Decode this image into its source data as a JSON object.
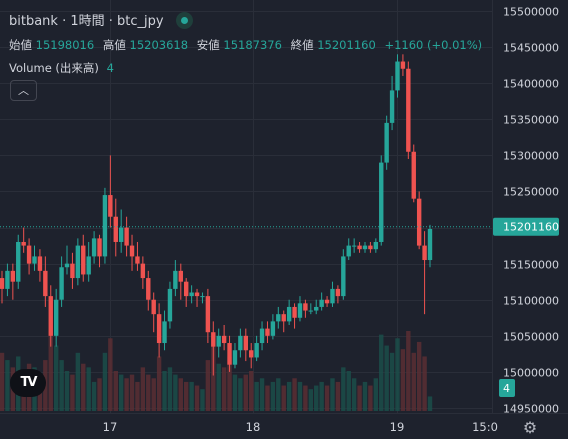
{
  "header": {
    "symbol": "bitbank · 1時間 · btc_jpy",
    "open_label": "始値",
    "open_value": "15198016",
    "high_label": "高値",
    "high_value": "15203618",
    "low_label": "安値",
    "low_value": "15187376",
    "close_label": "終値",
    "close_value": "15201160",
    "change_value": "+1160 (+0.01%)",
    "volume_label": "Volume (出来高)",
    "volume_value": "4"
  },
  "controls": {
    "collapse_icon": "chevron-up-icon",
    "settings_icon": "gear-icon",
    "logo_text": "TV"
  },
  "colors": {
    "up": "#26a69a",
    "down": "#ef5350",
    "background": "#1e222d",
    "grid": "#2a2e39",
    "price_line": "#26a69a"
  },
  "chart_data": {
    "type": "candlestick",
    "title": "bitbank · 1時間 · btc_jpy",
    "ylim": [
      14940000,
      15510000
    ],
    "y_ticks": [
      15500000,
      15450000,
      15400000,
      15350000,
      15300000,
      15250000,
      15200000,
      15150000,
      15100000,
      15050000,
      15000000,
      14950000
    ],
    "x_ticks": [
      "17",
      "18",
      "19",
      "15:0"
    ],
    "last_price_label": "15201160",
    "last_volume_label": "4",
    "grid": true,
    "candles": [
      [
        15130000,
        15115000,
        15140000,
        15095000
      ],
      [
        15115000,
        15140000,
        15150000,
        15105000
      ],
      [
        15140000,
        15125000,
        15150000,
        15100000
      ],
      [
        15125000,
        15180000,
        15190000,
        15115000
      ],
      [
        15180000,
        15175000,
        15200000,
        15165000
      ],
      [
        15175000,
        15150000,
        15185000,
        15135000
      ],
      [
        15150000,
        15160000,
        15175000,
        15140000
      ],
      [
        15160000,
        15140000,
        15170000,
        15125000
      ],
      [
        15140000,
        15105000,
        15160000,
        15090000
      ],
      [
        15105000,
        15050000,
        15120000,
        15035000
      ],
      [
        15050000,
        15100000,
        15115000,
        15035000
      ],
      [
        15100000,
        15145000,
        15160000,
        15090000
      ],
      [
        15145000,
        15150000,
        15175000,
        15135000
      ],
      [
        15150000,
        15130000,
        15165000,
        15115000
      ],
      [
        15130000,
        15175000,
        15185000,
        15120000
      ],
      [
        15175000,
        15135000,
        15190000,
        15125000
      ],
      [
        15135000,
        15160000,
        15180000,
        15125000
      ],
      [
        15160000,
        15185000,
        15195000,
        15150000
      ],
      [
        15185000,
        15160000,
        15190000,
        15145000
      ],
      [
        15160000,
        15245000,
        15255000,
        15150000
      ],
      [
        15245000,
        15215000,
        15300000,
        15200000
      ],
      [
        15215000,
        15180000,
        15240000,
        15160000
      ],
      [
        15180000,
        15200000,
        15225000,
        15165000
      ],
      [
        15200000,
        15175000,
        15215000,
        15160000
      ],
      [
        15175000,
        15160000,
        15190000,
        15140000
      ],
      [
        15160000,
        15150000,
        15180000,
        15140000
      ],
      [
        15150000,
        15130000,
        15160000,
        15115000
      ],
      [
        15130000,
        15100000,
        15140000,
        15085000
      ],
      [
        15100000,
        15080000,
        15110000,
        15055000
      ],
      [
        15080000,
        15040000,
        15095000,
        15020000
      ],
      [
        15040000,
        15070000,
        15085000,
        15030000
      ],
      [
        15070000,
        15115000,
        15125000,
        15060000
      ],
      [
        15115000,
        15140000,
        15155000,
        15105000
      ],
      [
        15140000,
        15125000,
        15150000,
        15100000
      ],
      [
        15125000,
        15105000,
        15130000,
        15090000
      ],
      [
        15105000,
        15110000,
        15120000,
        15095000
      ],
      [
        15110000,
        15105000,
        15115000,
        15090000
      ],
      [
        15105000,
        15105000,
        15110000,
        15095000
      ],
      [
        15105000,
        15055000,
        15115000,
        15040000
      ],
      [
        15055000,
        15035000,
        15070000,
        14995000
      ],
      [
        15035000,
        15050000,
        15060000,
        15020000
      ],
      [
        15050000,
        15040000,
        15065000,
        15030000
      ],
      [
        15040000,
        15010000,
        15050000,
        15000000
      ],
      [
        15010000,
        15030000,
        15040000,
        15005000
      ],
      [
        15030000,
        15050000,
        15060000,
        15020000
      ],
      [
        15050000,
        15030000,
        15060000,
        15015000
      ],
      [
        15030000,
        15020000,
        15040000,
        15005000
      ],
      [
        15020000,
        15040000,
        15050000,
        15015000
      ],
      [
        15040000,
        15060000,
        15070000,
        15030000
      ],
      [
        15060000,
        15050000,
        15070000,
        15040000
      ],
      [
        15050000,
        15070000,
        15080000,
        15045000
      ],
      [
        15070000,
        15080000,
        15090000,
        15060000
      ],
      [
        15080000,
        15070000,
        15085000,
        15055000
      ],
      [
        15070000,
        15090000,
        15100000,
        15065000
      ],
      [
        15090000,
        15075000,
        15095000,
        15060000
      ],
      [
        15075000,
        15095000,
        15105000,
        15070000
      ],
      [
        15095000,
        15085000,
        15100000,
        15075000
      ],
      [
        15085000,
        15085000,
        15095000,
        15080000
      ],
      [
        15085000,
        15090000,
        15100000,
        15080000
      ],
      [
        15090000,
        15100000,
        15110000,
        15085000
      ],
      [
        15100000,
        15095000,
        15105000,
        15090000
      ],
      [
        15095000,
        15115000,
        15125000,
        15090000
      ],
      [
        15115000,
        15105000,
        15120000,
        15095000
      ],
      [
        15105000,
        15160000,
        15170000,
        15100000
      ],
      [
        15160000,
        15175000,
        15185000,
        15155000
      ],
      [
        15175000,
        15175000,
        15185000,
        15165000
      ],
      [
        15175000,
        15170000,
        15180000,
        15165000
      ],
      [
        15170000,
        15175000,
        15180000,
        15165000
      ],
      [
        15175000,
        15170000,
        15180000,
        15165000
      ],
      [
        15170000,
        15180000,
        15185000,
        15165000
      ],
      [
        15180000,
        15290000,
        15300000,
        15175000
      ],
      [
        15290000,
        15345000,
        15355000,
        15280000
      ],
      [
        15345000,
        15390000,
        15410000,
        15335000
      ],
      [
        15390000,
        15430000,
        15440000,
        15380000
      ],
      [
        15430000,
        15420000,
        15440000,
        15410000
      ],
      [
        15420000,
        15305000,
        15430000,
        15295000
      ],
      [
        15305000,
        15240000,
        15315000,
        15235000
      ],
      [
        15240000,
        15175000,
        15250000,
        15170000
      ],
      [
        15175000,
        15155000,
        15195000,
        15080000
      ],
      [
        15155000,
        15198016,
        15203618,
        15145000
      ]
    ],
    "volumes": [
      1.6,
      1.4,
      1.2,
      1.5,
      1.0,
      1.3,
      1.2,
      1.0,
      1.4,
      2.2,
      1.8,
      1.4,
      1.1,
      1.0,
      1.6,
      1.3,
      1.2,
      0.8,
      0.9,
      1.6,
      2.0,
      1.1,
      1.0,
      0.9,
      1.0,
      0.8,
      1.2,
      1.0,
      0.9,
      1.5,
      1.1,
      1.2,
      1.0,
      0.9,
      0.8,
      0.8,
      0.7,
      0.6,
      1.4,
      1.8,
      1.3,
      1.2,
      1.5,
      1.0,
      0.9,
      1.0,
      1.1,
      0.8,
      0.9,
      0.7,
      0.8,
      0.9,
      0.7,
      0.8,
      0.9,
      0.8,
      0.7,
      0.6,
      0.7,
      0.8,
      0.7,
      0.9,
      0.8,
      1.2,
      1.1,
      0.9,
      0.7,
      0.8,
      0.7,
      0.9,
      2.1,
      1.8,
      1.6,
      2.0,
      1.7,
      2.2,
      1.6,
      1.9,
      1.5,
      0.4
    ]
  }
}
